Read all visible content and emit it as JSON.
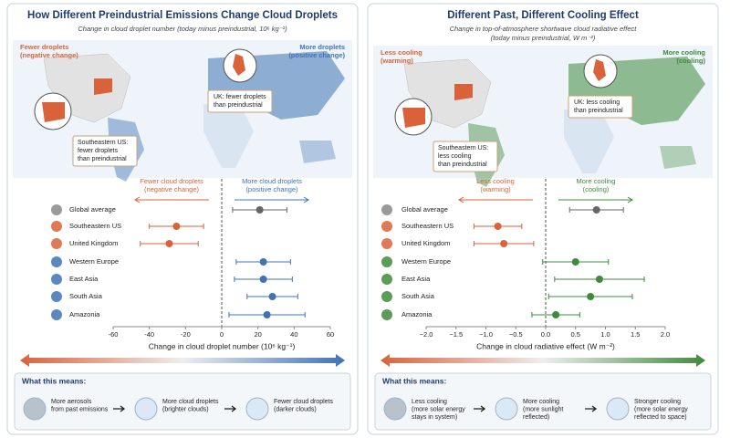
{
  "chart_data": [
    {
      "type": "dot-whisker",
      "title": "How Different Preindustrial Emissions Change Cloud Droplets",
      "subtitle": [
        "Change in cloud droplet number (today minus preindustrial, 10⁶ kg⁻¹)"
      ],
      "map_left_label": [
        "Fewer droplets",
        "(negative change)"
      ],
      "map_right_label": [
        "More droplets",
        "(positive change)"
      ],
      "callout_uk": [
        "UK: fewer droplets",
        "than preindustrial"
      ],
      "callout_us": [
        "Southeastern US:",
        "fewer droplets",
        "than preindustrial"
      ],
      "direction_negative": [
        "Fewer cloud droplets",
        "(negative change)"
      ],
      "direction_positive": [
        "More cloud droplets",
        "(positive change)"
      ],
      "categories": [
        "Global average",
        "Southeastern US",
        "United Kingdom",
        "Western Europe",
        "East Asia",
        "South Asia",
        "Amazonia"
      ],
      "values": [
        21,
        -25,
        -29,
        23,
        23,
        28,
        25
      ],
      "errors": [
        15,
        15,
        16,
        15,
        16,
        14,
        21
      ],
      "colors": [
        "#666666",
        "#d9623b",
        "#d9623b",
        "#3f73b5",
        "#3f73b5",
        "#3f73b5",
        "#3f73b5"
      ],
      "xlim": [
        -60,
        60
      ],
      "xticks": [
        -60,
        -40,
        -20,
        0,
        20,
        40,
        60
      ],
      "xlabel": "Change in cloud droplet number (10⁶ kg⁻¹)",
      "explainer_title": "What this means:",
      "explainer_steps": [
        [
          "More aerosols",
          "from past emissions"
        ],
        [
          "More cloud droplets",
          "(brighter clouds)"
        ],
        [
          "Fewer cloud droplets",
          "(darker clouds)"
        ]
      ]
    },
    {
      "type": "dot-whisker",
      "title": "Different Past, Different Cooling Effect",
      "subtitle": [
        "Change in top-of-atmosphere shortwave cloud radiative effect",
        "(today minus preindustrial, W m⁻²)"
      ],
      "map_left_label": [
        "Less cooling",
        "(warming)"
      ],
      "map_right_label": [
        "More cooling",
        "(cooling)"
      ],
      "callout_uk": [
        "UK: less cooling",
        "than preindustrial"
      ],
      "callout_us": [
        "Southeastern US:",
        "less cooling",
        "than preindustrial"
      ],
      "direction_negative": [
        "Less cooling",
        "(warming)"
      ],
      "direction_positive": [
        "More cooling",
        "(cooling)"
      ],
      "categories": [
        "Global average",
        "Southeastern US",
        "United Kingdom",
        "Western Europe",
        "East Asia",
        "South Asia",
        "Amazonia"
      ],
      "values": [
        0.85,
        -0.8,
        -0.7,
        0.5,
        0.9,
        0.75,
        0.17
      ],
      "errors": [
        0.45,
        0.4,
        0.5,
        0.55,
        0.75,
        0.7,
        0.4
      ],
      "colors": [
        "#666666",
        "#d9623b",
        "#d9623b",
        "#3f8a3c",
        "#3f8a3c",
        "#3f8a3c",
        "#3f8a3c"
      ],
      "xlim": [
        -2.0,
        2.0
      ],
      "xticks": [
        {
          "value": -2.0,
          "label": "−2.0"
        },
        {
          "value": -1.5,
          "label": "−1.5"
        },
        {
          "value": -1.0,
          "label": "−1.0"
        },
        {
          "value": -0.5,
          "label": "−0.5"
        },
        {
          "value": 0,
          "label": "0.0"
        },
        {
          "value": 0.5,
          "label": "0.5"
        },
        {
          "value": 1.0,
          "label": "1.0"
        },
        {
          "value": 1.5,
          "label": "1.5"
        },
        {
          "value": 2.0,
          "label": "2.0"
        }
      ],
      "xlabel": "Change in cloud radiative effect (W m⁻²)",
      "explainer_title": "What this means:",
      "explainer_steps": [
        [
          "Less cooling",
          "(more solar energy",
          "stays in system)"
        ],
        [
          "More cooling",
          "(more sunlight",
          "reflected)"
        ],
        [
          "Stronger cooling",
          "(more solar energy",
          "reflected to space)"
        ]
      ]
    }
  ]
}
